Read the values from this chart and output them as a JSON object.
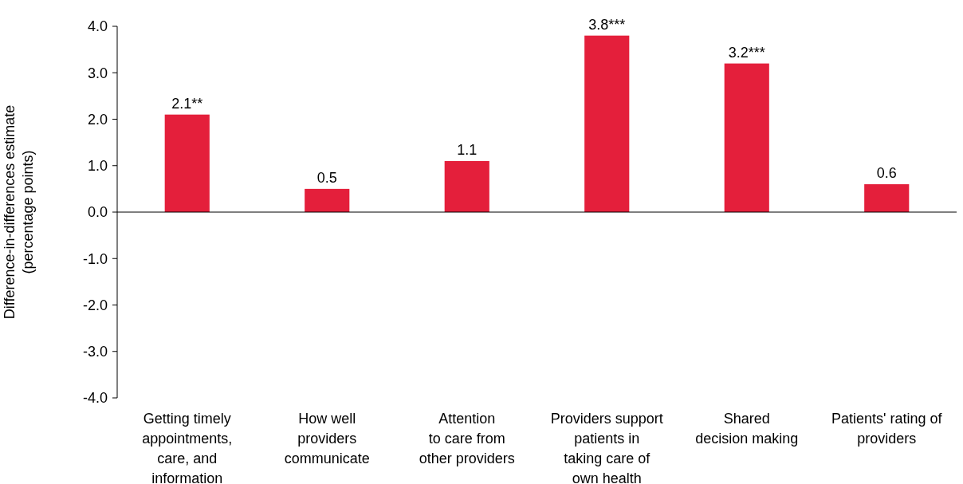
{
  "chart_data": {
    "type": "bar",
    "ylabel": "Difference-in-differences estimate\n(percentage points)",
    "categories": [
      "Getting timely\nappointments,\ncare, and\ninformation",
      "How well\nproviders\ncommunicate",
      "Attention\nto care from\nother providers",
      "Providers support\npatients in\ntaking care of\nown health",
      "Shared\ndecision making",
      "Patients' rating of\nproviders"
    ],
    "values": [
      2.1,
      0.5,
      1.1,
      3.8,
      3.2,
      0.6
    ],
    "value_labels": [
      "2.1**",
      "0.5",
      "1.1",
      "3.8***",
      "3.2***",
      "0.6"
    ],
    "color": "#e41f3b",
    "ylim": [
      -4,
      4
    ],
    "yticks": [
      {
        "value": 4,
        "label": "4.0"
      },
      {
        "value": 3,
        "label": "3.0"
      },
      {
        "value": 2,
        "label": "2.0"
      },
      {
        "value": 1,
        "label": "1.0"
      },
      {
        "value": 0,
        "label": "0.0"
      },
      {
        "value": -1,
        "label": "-1.0"
      },
      {
        "value": -2,
        "label": "-2.0"
      },
      {
        "value": -3,
        "label": "-3.0"
      },
      {
        "value": -4,
        "label": "-4.0"
      }
    ]
  }
}
